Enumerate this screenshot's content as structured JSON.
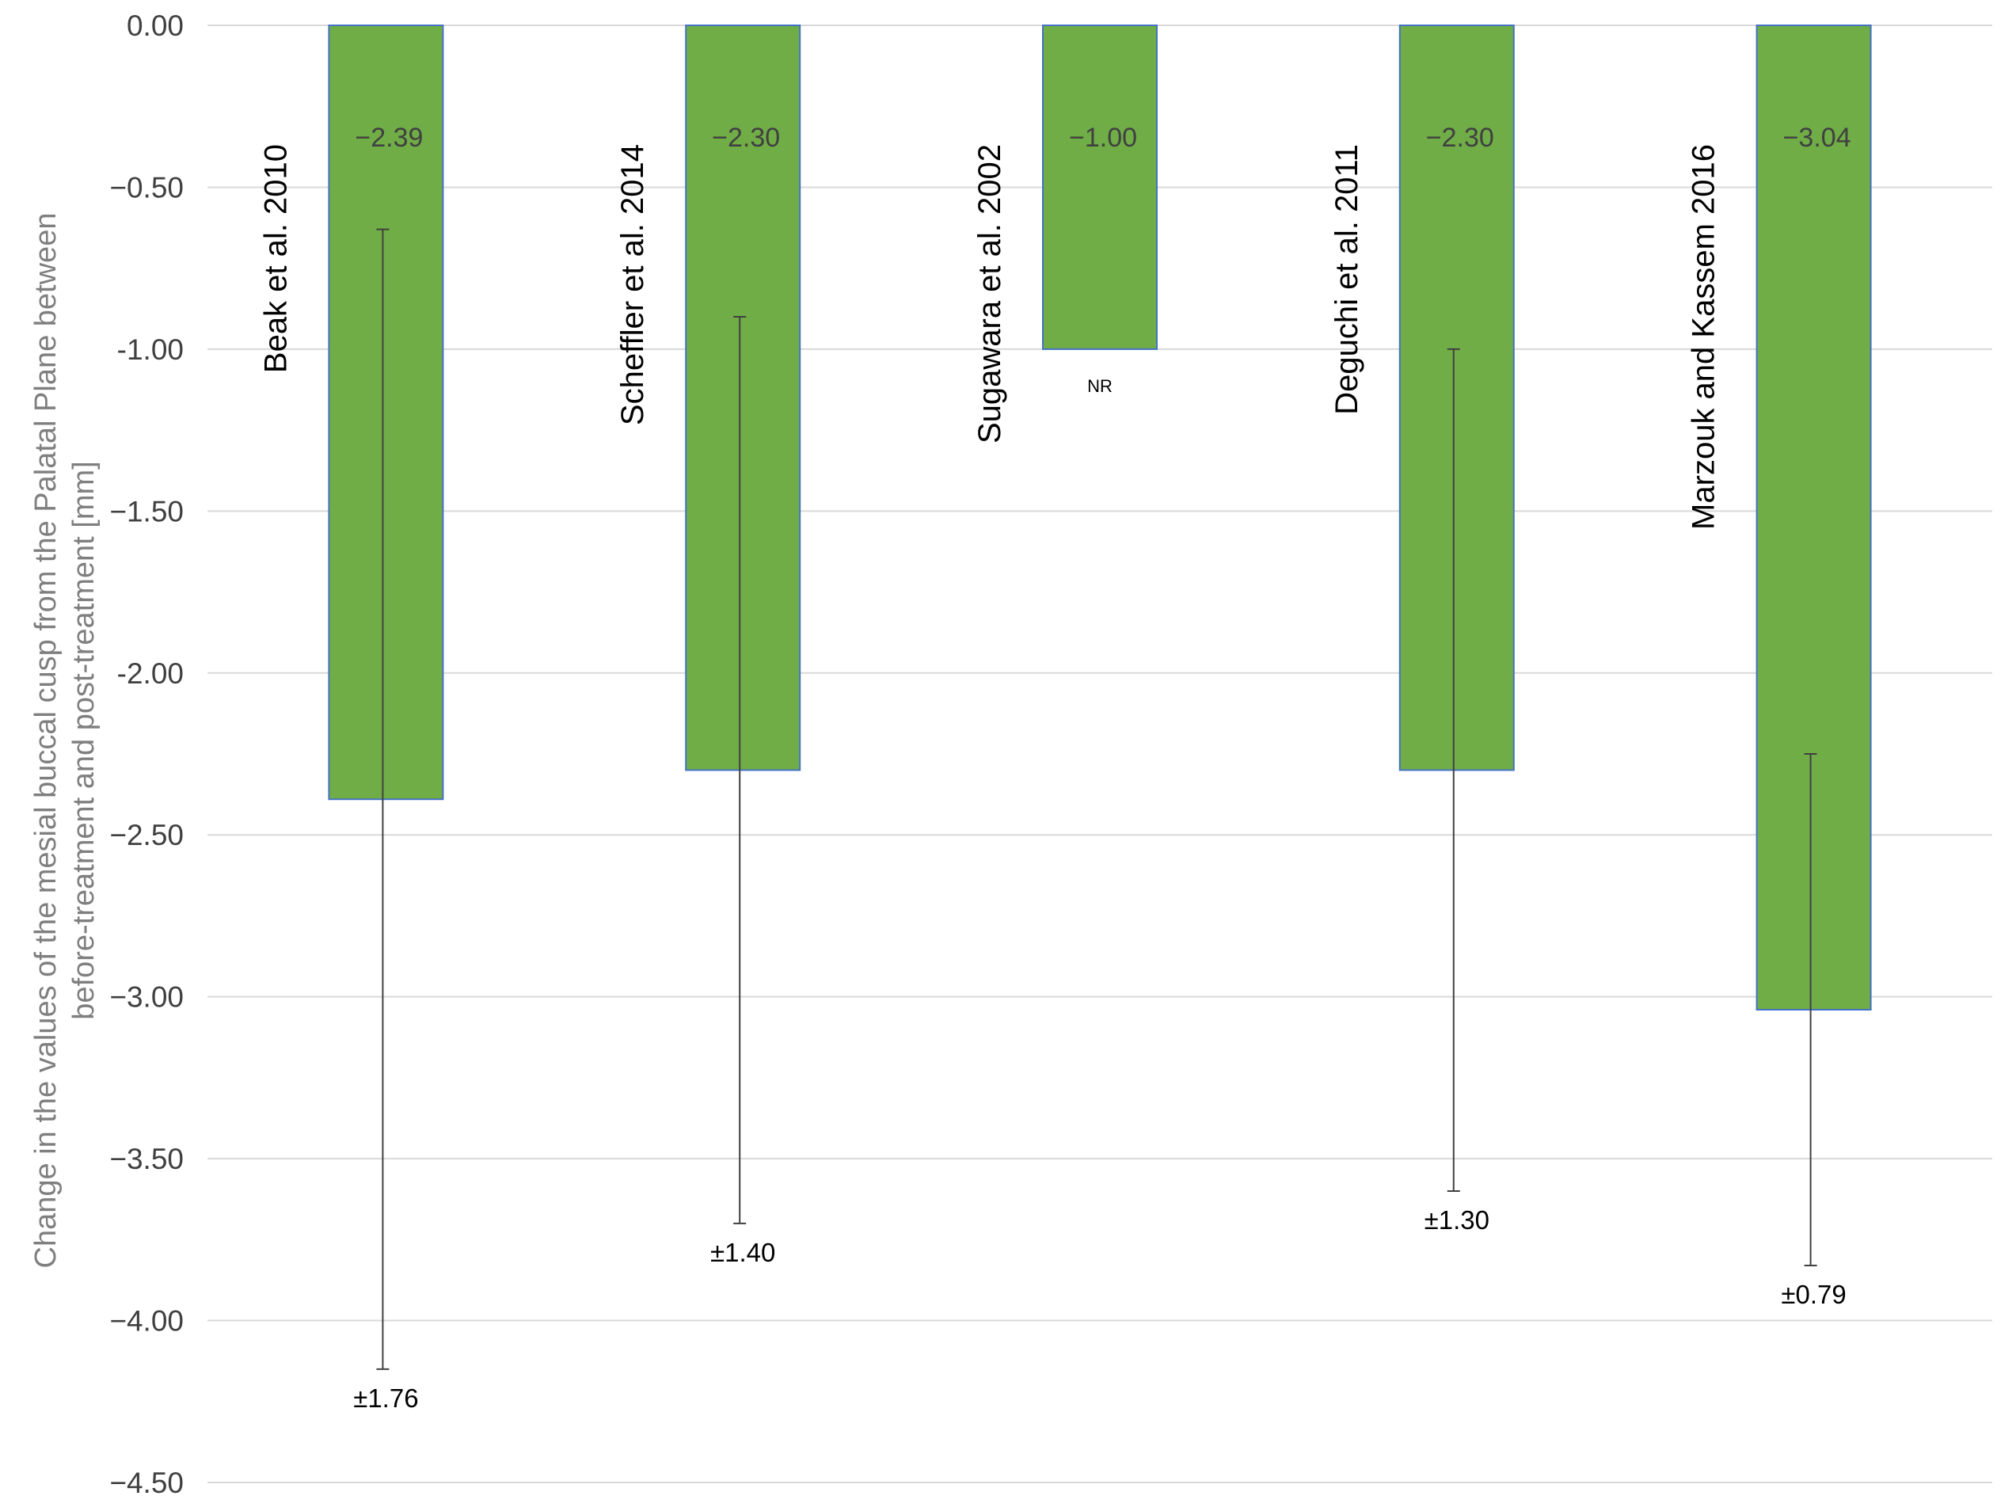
{
  "chart_data": {
    "type": "bar",
    "ylabel_lines": [
      "Change in the values of the mesial buccal cusp from the Palatal Plane between",
      "before-treatment and post-treatment [mm]"
    ],
    "ylim": [
      -4.5,
      0
    ],
    "yticks": [
      0,
      -0.5,
      -1,
      -1.5,
      -2,
      -2.5,
      -3,
      -3.5,
      -4,
      -4.5
    ],
    "ytick_labels": [
      "0.00",
      "−0.50",
      "-1.00",
      "−1.50",
      "-2.00",
      "−2.50",
      "−3.00",
      "−3.50",
      "−4.00",
      "−4.50"
    ],
    "grid": true,
    "bar_color": "#70ad47",
    "bar_edge_color": "#4472c4",
    "categories": [
      "Beak et al. 2010",
      "Scheffler et al. 2014",
      "Sugawara et al. 2002",
      "Deguchi et al. 2011",
      "Marzouk and Kassem 2016"
    ],
    "values": [
      -2.39,
      -2.3,
      -1.0,
      -2.3,
      -3.04
    ],
    "value_labels": [
      "−2.39",
      "−2.30",
      "−1.00",
      "−2.30",
      "−3.04"
    ],
    "errors": [
      1.76,
      1.4,
      null,
      1.3,
      0.79
    ],
    "error_labels": [
      "±1.76",
      "±1.40",
      "NR",
      "±1.30",
      "±0.79"
    ]
  }
}
